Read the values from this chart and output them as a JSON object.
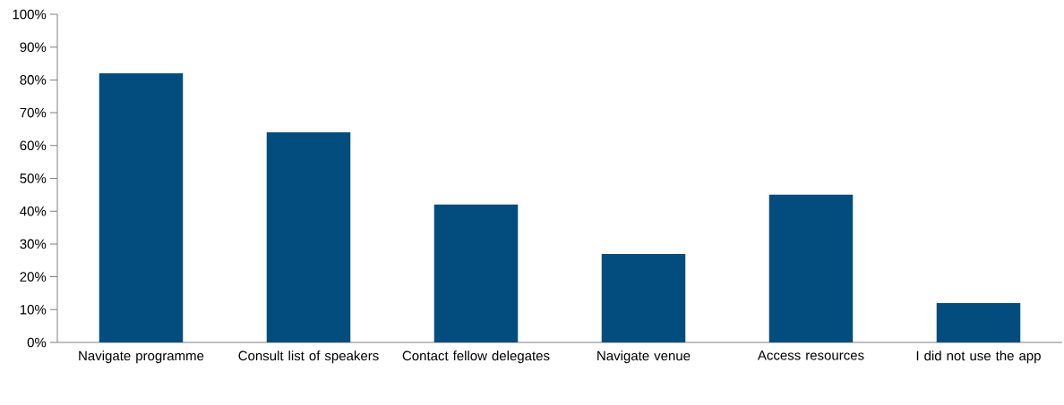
{
  "chart_data": {
    "type": "bar",
    "categories": [
      "Navigate programme",
      "Consult list of speakers",
      "Contact fellow delegates",
      "Navigate venue",
      "Access resources",
      "I did not use the app"
    ],
    "values": [
      82,
      64,
      42,
      27,
      45,
      12
    ],
    "color": "#034d7e",
    "ylim": [
      0,
      100
    ],
    "yticks": [
      {
        "value": 0,
        "label": "0%"
      },
      {
        "value": 10,
        "label": "10%"
      },
      {
        "value": 20,
        "label": "20%"
      },
      {
        "value": 30,
        "label": "30%"
      },
      {
        "value": 40,
        "label": "40%"
      },
      {
        "value": 50,
        "label": "50%"
      },
      {
        "value": 60,
        "label": "60%"
      },
      {
        "value": 70,
        "label": "70%"
      },
      {
        "value": 80,
        "label": "80%"
      },
      {
        "value": 90,
        "label": "90%"
      },
      {
        "value": 100,
        "label": "100%"
      }
    ],
    "grid": false
  }
}
